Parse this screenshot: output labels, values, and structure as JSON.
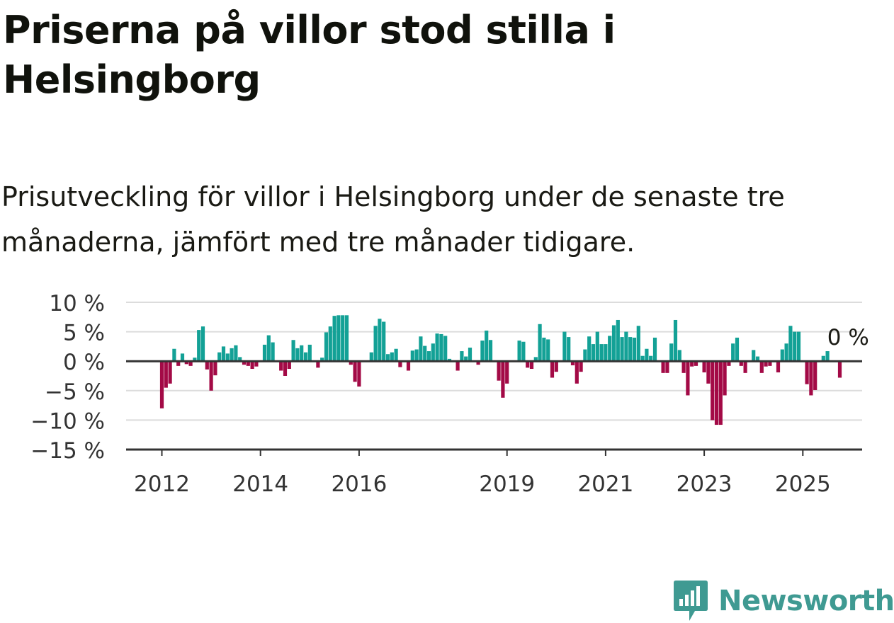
{
  "header": {
    "title": "Priserna på villor stod stilla i Helsingborg",
    "subtitle": "Prisutveckling för villor i Helsingborg under de senaste tre månaderna, jämfört med tre månader tidigare."
  },
  "brand": {
    "name": "Newsworthy",
    "icon": "newsworthy-logo-icon",
    "color": "#3f9a92"
  },
  "colors": {
    "positive": "#13a196",
    "negative": "#a30a46",
    "grid": "#dcdcdc",
    "axis": "#333333"
  },
  "chart_data": {
    "type": "bar",
    "x_start": "2012-01",
    "x_step": "month",
    "ylim": [
      -15,
      10
    ],
    "yticks": [
      10,
      5,
      0,
      -5,
      -10,
      -15
    ],
    "ytick_labels": [
      "10 %",
      "5 %",
      "0 %",
      "−5 %",
      "−10 %",
      "−15 %"
    ],
    "xticks": [
      "2012",
      "2014",
      "2016",
      "2019",
      "2021",
      "2023",
      "2025"
    ],
    "grid": true,
    "annotation": {
      "text": "0 %",
      "target": "last"
    },
    "values": [
      -8,
      -4.5,
      -3.8,
      2.1,
      -0.8,
      1.3,
      -0.5,
      -0.8,
      0.6,
      5.3,
      5.9,
      -1.4,
      -5,
      -2.4,
      1.5,
      2.5,
      1.3,
      2.2,
      2.7,
      0.7,
      -0.6,
      -0.8,
      -1.3,
      -0.9,
      0,
      2.8,
      4.4,
      3.2,
      0,
      -1.6,
      -2.5,
      -1.3,
      3.6,
      2.2,
      2.7,
      1.5,
      2.8,
      0,
      -1.1,
      0.6,
      4.9,
      5.9,
      7.7,
      7.8,
      7.8,
      7.8,
      -0.6,
      -3.5,
      -4.3,
      0,
      0,
      1.5,
      6,
      7.2,
      6.7,
      1.2,
      1.5,
      2.1,
      -1,
      0,
      -1.6,
      1.8,
      2,
      4.2,
      2.6,
      1.7,
      3,
      4.7,
      4.6,
      4.3,
      0.4,
      0,
      -1.6,
      1.7,
      0.8,
      2.3,
      0,
      -0.6,
      3.5,
      5.2,
      3.6,
      0,
      -3.3,
      -6.2,
      -3.8,
      0,
      0,
      3.5,
      3.3,
      -1.1,
      -1.3,
      0.7,
      6.3,
      4,
      3.7,
      -2.8,
      -1.8,
      0,
      5,
      4.1,
      -0.7,
      -3.8,
      -1.8,
      2,
      4.2,
      2.9,
      5,
      2.9,
      2.9,
      4.3,
      6.1,
      7,
      4.1,
      5,
      4.1,
      4,
      6,
      0.9,
      2.1,
      0.9,
      4,
      0,
      -2,
      -2,
      3,
      7,
      1.9,
      -2,
      -5.8,
      -0.9,
      -0.8,
      0,
      -1.9,
      -3.8,
      -10,
      -10.8,
      -10.8,
      -5.8,
      -0.8,
      3,
      4,
      -0.8,
      -2,
      0,
      1.9,
      0.8,
      -2,
      -0.9,
      -0.8,
      0,
      -1.9,
      2,
      3,
      6,
      5,
      5,
      0,
      -3.9,
      -5.8,
      -4.9,
      0,
      0.9,
      1.7,
      0,
      0,
      -2.8,
      0
    ]
  }
}
